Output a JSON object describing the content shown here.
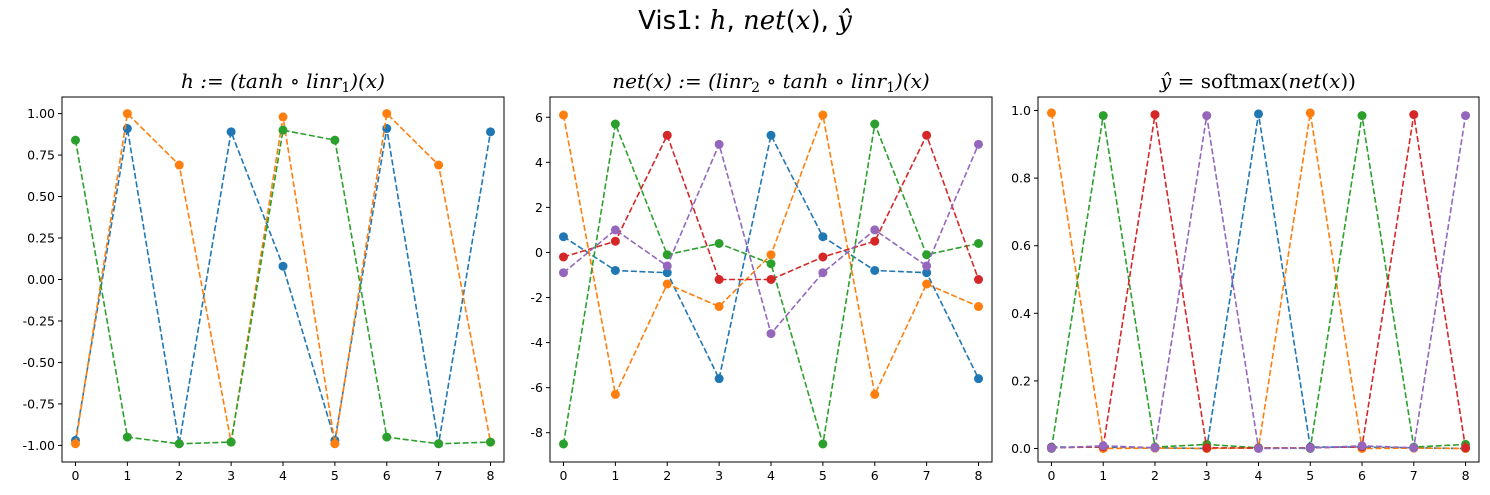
{
  "figure_title": "Vis1: h, net(x), ŷ",
  "chart_data": [
    {
      "type": "line",
      "title": "h := (tanh ∘ linr₁)(x)",
      "xlabel": "",
      "ylabel": "",
      "x": [
        0,
        1,
        2,
        3,
        4,
        5,
        6,
        7,
        8
      ],
      "xticks": [
        "0",
        "1",
        "2",
        "3",
        "4",
        "5",
        "6",
        "7",
        "8"
      ],
      "xlim": [
        -0.26,
        8.26
      ],
      "ylim": [
        -1.1,
        1.1
      ],
      "yticks": [
        "-1.00",
        "-0.75",
        "-0.50",
        "-0.25",
        "0.00",
        "0.25",
        "0.50",
        "0.75",
        "1.00"
      ],
      "ytick_values": [
        -1.0,
        -0.75,
        -0.5,
        -0.25,
        0.0,
        0.25,
        0.5,
        0.75,
        1.0
      ],
      "grid": false,
      "linestyle": "dashed",
      "marker": "circle",
      "series": [
        {
          "color": "#1f77b4",
          "values": [
            -0.97,
            0.91,
            -0.99,
            0.89,
            0.08,
            -0.97,
            0.91,
            -0.99,
            0.89
          ]
        },
        {
          "color": "#ff7f0e",
          "values": [
            -0.99,
            1.0,
            0.69,
            -0.98,
            0.98,
            -0.99,
            1.0,
            0.69,
            -0.98
          ]
        },
        {
          "color": "#2ca02c",
          "values": [
            0.84,
            -0.95,
            -0.99,
            -0.98,
            0.9,
            0.84,
            -0.95,
            -0.99,
            -0.98
          ]
        }
      ]
    },
    {
      "type": "line",
      "title": "net(x) := (linr₂ ∘ tanh ∘ linr₁)(x)",
      "xlabel": "",
      "ylabel": "",
      "x": [
        0,
        1,
        2,
        3,
        4,
        5,
        6,
        7,
        8
      ],
      "xticks": [
        "0",
        "1",
        "2",
        "3",
        "4",
        "5",
        "6",
        "7",
        "8"
      ],
      "xlim": [
        -0.26,
        8.26
      ],
      "ylim": [
        -9.3,
        6.9
      ],
      "yticks": [
        "-8",
        "-6",
        "-4",
        "-2",
        "0",
        "2",
        "4",
        "6"
      ],
      "ytick_values": [
        -8,
        -6,
        -4,
        -2,
        0,
        2,
        4,
        6
      ],
      "grid": false,
      "linestyle": "dashed",
      "marker": "circle",
      "series": [
        {
          "color": "#1f77b4",
          "values": [
            0.7,
            -0.8,
            -0.9,
            -5.6,
            5.2,
            0.7,
            -0.8,
            -0.9,
            -5.6
          ]
        },
        {
          "color": "#ff7f0e",
          "values": [
            6.1,
            -6.3,
            -1.4,
            -2.4,
            -0.1,
            6.1,
            -6.3,
            -1.4,
            -2.4
          ]
        },
        {
          "color": "#2ca02c",
          "values": [
            -8.5,
            5.7,
            -0.1,
            0.4,
            -0.5,
            -8.5,
            5.7,
            -0.1,
            0.4
          ]
        },
        {
          "color": "#d62728",
          "values": [
            -0.2,
            0.5,
            5.2,
            -1.2,
            -1.2,
            -0.2,
            0.5,
            5.2,
            -1.2
          ]
        },
        {
          "color": "#9467bd",
          "values": [
            -0.9,
            1.0,
            -0.6,
            4.8,
            -3.6,
            -0.9,
            1.0,
            -0.6,
            4.8
          ]
        }
      ]
    },
    {
      "type": "line",
      "title": "ŷ = softmax(net(x))",
      "xlabel": "",
      "ylabel": "",
      "x": [
        0,
        1,
        2,
        3,
        4,
        5,
        6,
        7,
        8
      ],
      "xticks": [
        "0",
        "1",
        "2",
        "3",
        "4",
        "5",
        "6",
        "7",
        "8"
      ],
      "xlim": [
        -0.26,
        8.26
      ],
      "ylim": [
        -0.04,
        1.04
      ],
      "yticks": [
        "0.0",
        "0.2",
        "0.4",
        "0.6",
        "0.8",
        "1.0"
      ],
      "ytick_values": [
        0.0,
        0.2,
        0.4,
        0.6,
        0.8,
        1.0
      ],
      "grid": false,
      "linestyle": "dashed",
      "marker": "circle",
      "series": [
        {
          "color": "#1f77b4",
          "values": [
            0.004,
            0.004,
            0.002,
            0.0,
            0.99,
            0.004,
            0.004,
            0.002,
            0.0
          ]
        },
        {
          "color": "#ff7f0e",
          "values": [
            0.993,
            0.0,
            0.001,
            0.0,
            0.002,
            0.993,
            0.0,
            0.001,
            0.0
          ]
        },
        {
          "color": "#2ca02c",
          "values": [
            0.0,
            0.985,
            0.004,
            0.012,
            0.002,
            0.0,
            0.985,
            0.004,
            0.012
          ]
        },
        {
          "color": "#d62728",
          "values": [
            0.002,
            0.005,
            0.988,
            0.002,
            0.001,
            0.002,
            0.005,
            0.988,
            0.002
          ]
        },
        {
          "color": "#9467bd",
          "values": [
            0.001,
            0.008,
            0.002,
            0.985,
            0.0,
            0.001,
            0.008,
            0.002,
            0.985
          ]
        }
      ]
    }
  ]
}
